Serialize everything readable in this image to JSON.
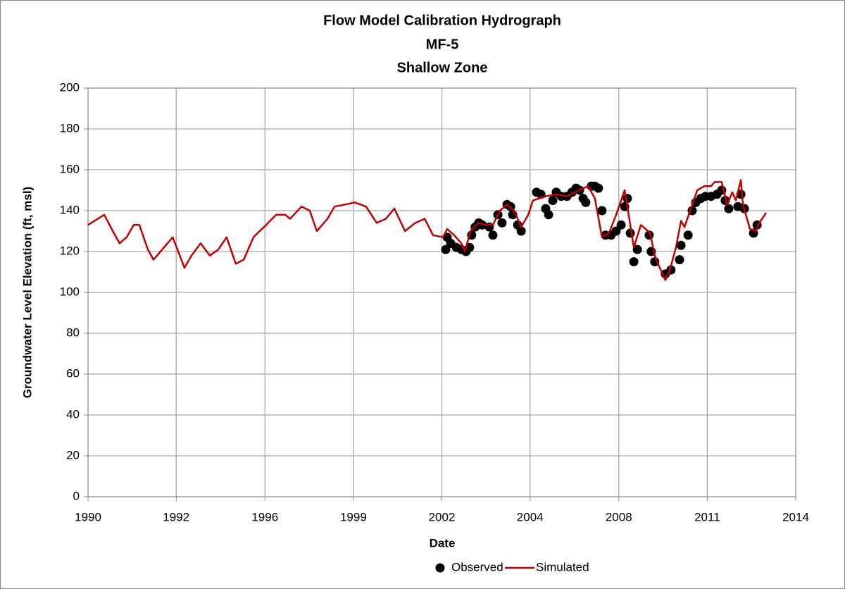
{
  "chart_data": {
    "type": "line",
    "title": "Flow Model Calibration Hydrograph",
    "subtitle": "MF-5",
    "subtitle2": "Shallow Zone",
    "xlabel": "Date",
    "ylabel": "Groundwater Level Elevation (ft, msl)",
    "xlim": [
      1990,
      2014
    ],
    "xticks": [
      1990,
      {
        "value": 1992.99,
        "label": "1992"
      },
      1996,
      1999,
      2002,
      {
        "value": 2004.99,
        "label": "2004"
      },
      2008,
      2011,
      2014
    ],
    "ylim": [
      0,
      200
    ],
    "yticks": [
      0,
      20,
      40,
      60,
      80,
      100,
      120,
      140,
      160,
      180,
      200
    ],
    "grid": true,
    "legend": "bottom",
    "series": [
      {
        "name": "Observed",
        "color": "#000000",
        "style": "marker",
        "x": [
          2002.13,
          2002.18,
          2002.3,
          2002.49,
          2002.66,
          2002.82,
          2002.94,
          2003.01,
          2003.13,
          2003.25,
          2003.37,
          2003.61,
          2003.73,
          2003.9,
          2004.04,
          2004.21,
          2004.33,
          2004.4,
          2004.57,
          2004.69,
          2005.21,
          2005.36,
          2005.52,
          2005.62,
          2005.76,
          2005.88,
          2006.05,
          2006.24,
          2006.41,
          2006.55,
          2006.67,
          2006.79,
          2006.88,
          2007.07,
          2007.19,
          2007.31,
          2007.43,
          2007.55,
          2007.74,
          2007.91,
          2008.08,
          2008.2,
          2008.29,
          2008.39,
          2008.51,
          2008.63,
          2009.03,
          2009.1,
          2009.22,
          2009.58,
          2009.77,
          2010.06,
          2010.11,
          2010.35,
          2010.49,
          2010.61,
          2010.78,
          2010.94,
          2011.13,
          2011.33,
          2011.49,
          2011.61,
          2011.73,
          2012.04,
          2012.14,
          2012.26,
          2012.57,
          2012.69
        ],
        "values": [
          121,
          127,
          124,
          122,
          121,
          120,
          122,
          128,
          132,
          134,
          133,
          132,
          128,
          138,
          134,
          143,
          142,
          138,
          133,
          130,
          149,
          148,
          141,
          138,
          145,
          149,
          147,
          147,
          149,
          151,
          150,
          146,
          144,
          152,
          152,
          151,
          140,
          128,
          128,
          130,
          133,
          142,
          146,
          129,
          115,
          121,
          128,
          120,
          115,
          109,
          111,
          116,
          123,
          128,
          140,
          144,
          146,
          147,
          147,
          148,
          150,
          145,
          141,
          142,
          148,
          141,
          129,
          133
        ]
      },
      {
        "name": "Simulated",
        "color": "#c00000",
        "style": "line",
        "x": [
          1990.0,
          1990.55,
          1990.84,
          1991.07,
          1991.31,
          1991.55,
          1991.74,
          1992.03,
          1992.22,
          1992.46,
          1992.87,
          1993.06,
          1993.27,
          1993.51,
          1993.82,
          1994.13,
          1994.42,
          1994.7,
          1995.01,
          1995.28,
          1995.61,
          1996.04,
          1996.38,
          1996.69,
          1996.85,
          1997.24,
          1997.52,
          1997.76,
          1998.12,
          1998.36,
          1998.72,
          1999.05,
          1999.43,
          1999.79,
          2000.1,
          2000.39,
          2000.75,
          2001.1,
          2001.42,
          2001.7,
          2002.04,
          2002.18,
          2002.42,
          2002.66,
          2002.78,
          2002.97,
          2003.25,
          2003.49,
          2003.73,
          2003.97,
          2004.21,
          2004.45,
          2004.69,
          2004.93,
          2005.09,
          2005.52,
          2005.88,
          2006.24,
          2006.64,
          2006.96,
          2007.19,
          2007.43,
          2007.67,
          2007.91,
          2008.2,
          2008.39,
          2008.51,
          2008.75,
          2008.91,
          2009.06,
          2009.22,
          2009.39,
          2009.58,
          2009.75,
          2009.94,
          2010.11,
          2010.23,
          2010.42,
          2010.66,
          2010.9,
          2011.13,
          2011.25,
          2011.49,
          2011.68,
          2011.85,
          2011.97,
          2012.14,
          2012.21,
          2012.45,
          2012.64,
          2012.81,
          2013.0
        ],
        "values": [
          133,
          138,
          130,
          124,
          127,
          133,
          133,
          121,
          116,
          120,
          127,
          120,
          112,
          118,
          124,
          118,
          121,
          127,
          114,
          116,
          127,
          133,
          138,
          138,
          136,
          142,
          140,
          130,
          136,
          142,
          143,
          144,
          142,
          134,
          136,
          141,
          130,
          134,
          136,
          128,
          127,
          131,
          128,
          124,
          120,
          130,
          134,
          133,
          133,
          140,
          143,
          140,
          132,
          138,
          145,
          147,
          148,
          147,
          150,
          152,
          146,
          127,
          129,
          138,
          150,
          133,
          122,
          133,
          131,
          129,
          118,
          112,
          106,
          112,
          122,
          135,
          132,
          140,
          150,
          152,
          152,
          154,
          154,
          143,
          149,
          145,
          155,
          143,
          131,
          130,
          135,
          139
        ]
      }
    ]
  }
}
